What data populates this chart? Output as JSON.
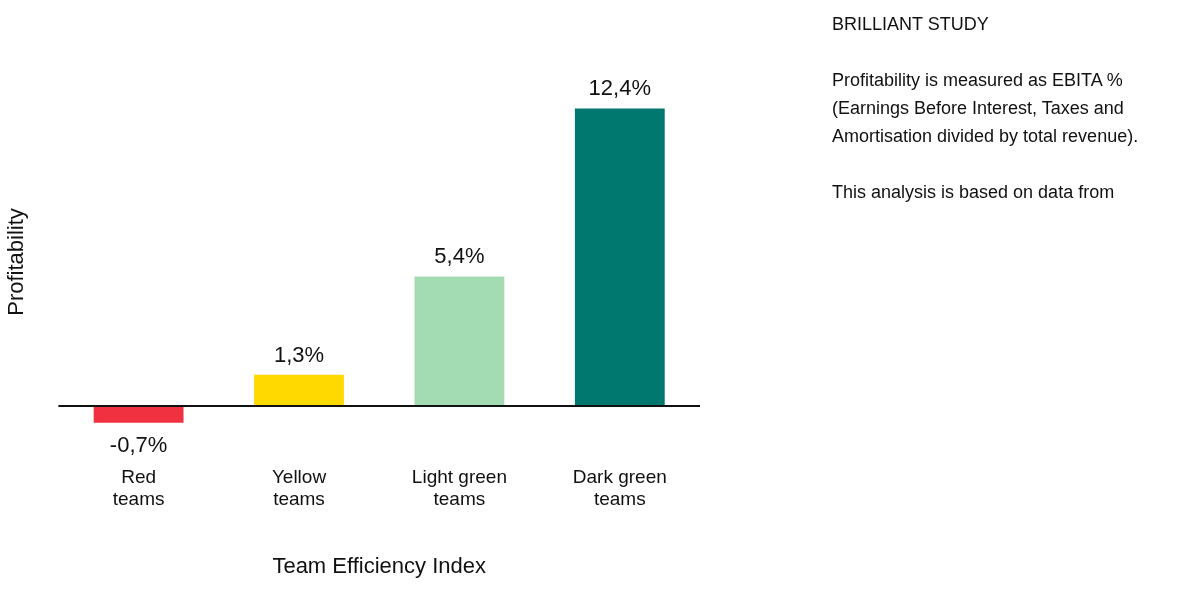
{
  "chart_data": {
    "type": "bar",
    "title": "BRILLIANT STUDY",
    "annotations": [
      "Profitability is measured as EBITA % (Earnings Before Interest, Taxes and Amortisation divided by total revenue).",
      "This analysis is based on data from"
    ],
    "xlabel": "Team Efficiency Index",
    "ylabel": "Profitability",
    "categories": [
      "Red teams",
      "Yellow teams",
      "Light green teams",
      "Dark green teams"
    ],
    "values": [
      -0.7,
      1.3,
      5.4,
      12.4
    ],
    "colors": [
      "#f0313f",
      "#ffd900",
      "#a3dbb2",
      "#007870"
    ],
    "value_labels": [
      "-0,7%",
      "1,3%",
      "5,4%",
      "12,4%"
    ]
  }
}
